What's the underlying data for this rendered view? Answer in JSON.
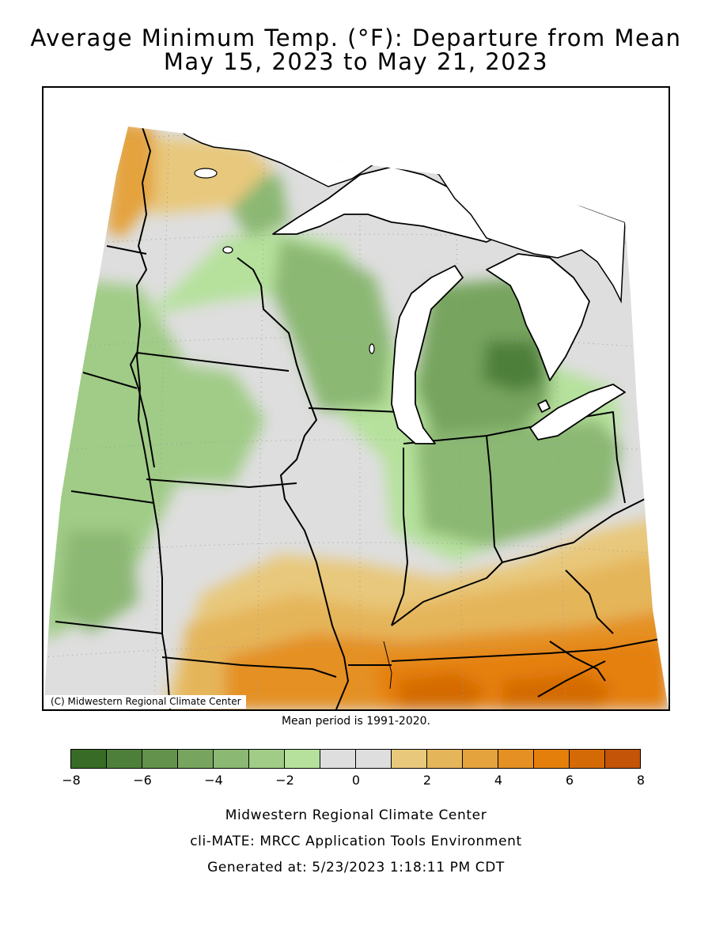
{
  "title_line1": "Average Minimum Temp. (°F): Departure from Mean",
  "title_line2": "May 15, 2023 to May 21, 2023",
  "copyright": "(C) Midwestern Regional Climate Center",
  "mean_period": "Mean period is 1991-2020.",
  "legend": {
    "bins": [
      {
        "from": -8,
        "to": -7,
        "color": "#386b25"
      },
      {
        "from": -7,
        "to": -6,
        "color": "#4e7f3a"
      },
      {
        "from": -6,
        "to": -5,
        "color": "#62924c"
      },
      {
        "from": -5,
        "to": -4,
        "color": "#77a55f"
      },
      {
        "from": -4,
        "to": -3,
        "color": "#8bb873"
      },
      {
        "from": -3,
        "to": -2,
        "color": "#a0cc87"
      },
      {
        "from": -2,
        "to": -1,
        "color": "#b5e19c"
      },
      {
        "from": -1,
        "to": 0,
        "color": "#dedede"
      },
      {
        "from": 0,
        "to": 1,
        "color": "#dedede"
      },
      {
        "from": 1,
        "to": 2,
        "color": "#e8c87b"
      },
      {
        "from": 2,
        "to": 3,
        "color": "#e5b55a"
      },
      {
        "from": 3,
        "to": 4,
        "color": "#e4a33c"
      },
      {
        "from": 4,
        "to": 5,
        "color": "#e59023"
      },
      {
        "from": 5,
        "to": 6,
        "color": "#e57f0c"
      },
      {
        "from": 6,
        "to": 7,
        "color": "#d46a06"
      },
      {
        "from": 7,
        "to": 8,
        "color": "#c45408"
      }
    ],
    "tick_labels": [
      "-8",
      "-6",
      "-4",
      "-2",
      "0",
      "2",
      "4",
      "6",
      "8"
    ]
  },
  "footer": {
    "line1": "Midwestern Regional Climate Center",
    "line2": "cli-MATE: MRCC Application Tools Environment",
    "line3": "Generated at: 5/23/2023 1:18:11 PM CDT"
  },
  "colors": {
    "lake": "#ffffff",
    "border": "#000000",
    "grid": "#9a9a9a"
  }
}
